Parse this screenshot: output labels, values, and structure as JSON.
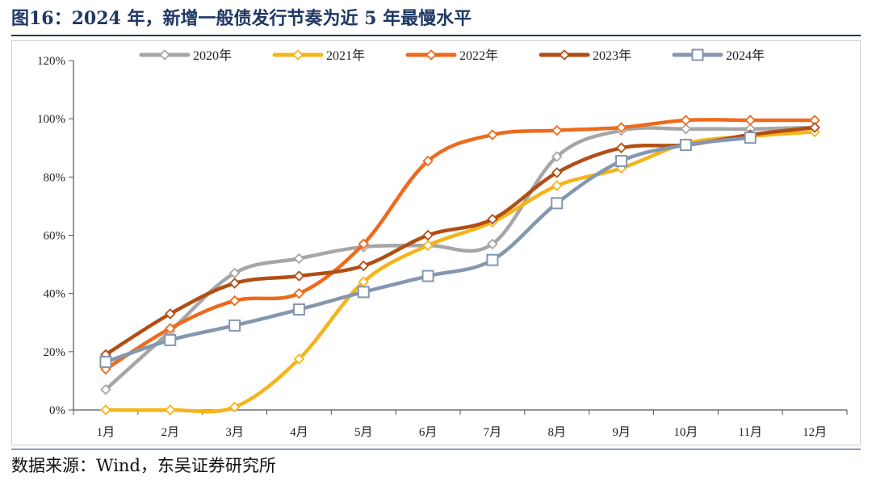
{
  "figure": {
    "title": "图16：2024 年，新增一般债发行节奏为近 5 年最慢水平",
    "source": "数据来源：Wind，东吴证券研究所"
  },
  "chart_data": {
    "type": "line",
    "title": "",
    "xlabel": "",
    "ylabel": "",
    "categories": [
      "1月",
      "2月",
      "3月",
      "4月",
      "5月",
      "6月",
      "7月",
      "8月",
      "9月",
      "10月",
      "11月",
      "12月"
    ],
    "ylim": [
      0,
      120
    ],
    "yticks": [
      0,
      20,
      40,
      60,
      80,
      100,
      120
    ],
    "ytick_labels": [
      "0%",
      "20%",
      "40%",
      "60%",
      "80%",
      "100%",
      "120%"
    ],
    "y_unit": "%",
    "grid": false,
    "legend_position": "top",
    "series": [
      {
        "name": "2020年",
        "color": "#a6a6a6",
        "marker": "diamond",
        "values": [
          7,
          27,
          47,
          52,
          56,
          56.5,
          57,
          87,
          96,
          96.5,
          96.5,
          97
        ]
      },
      {
        "name": "2021年",
        "color": "#f5b51a",
        "marker": "diamond",
        "values": [
          0,
          0,
          1,
          17.5,
          44,
          56.5,
          64.5,
          77,
          83,
          91.5,
          94,
          95.5
        ]
      },
      {
        "name": "2022年",
        "color": "#ee6a1c",
        "marker": "diamond",
        "values": [
          14,
          28,
          37.5,
          40,
          57,
          85.5,
          94.5,
          96,
          97,
          99.5,
          99.5,
          99.5
        ]
      },
      {
        "name": "2023年",
        "color": "#b24e14",
        "marker": "diamond",
        "values": [
          19,
          33,
          43.5,
          46,
          49.5,
          60,
          65.5,
          81.5,
          90,
          91,
          94.5,
          97
        ]
      },
      {
        "name": "2024年",
        "color": "#8497b0",
        "marker": "square",
        "values": [
          16.5,
          24,
          29,
          34.5,
          40.5,
          46,
          51.5,
          71,
          85.5,
          91,
          93.5,
          null
        ]
      }
    ]
  }
}
